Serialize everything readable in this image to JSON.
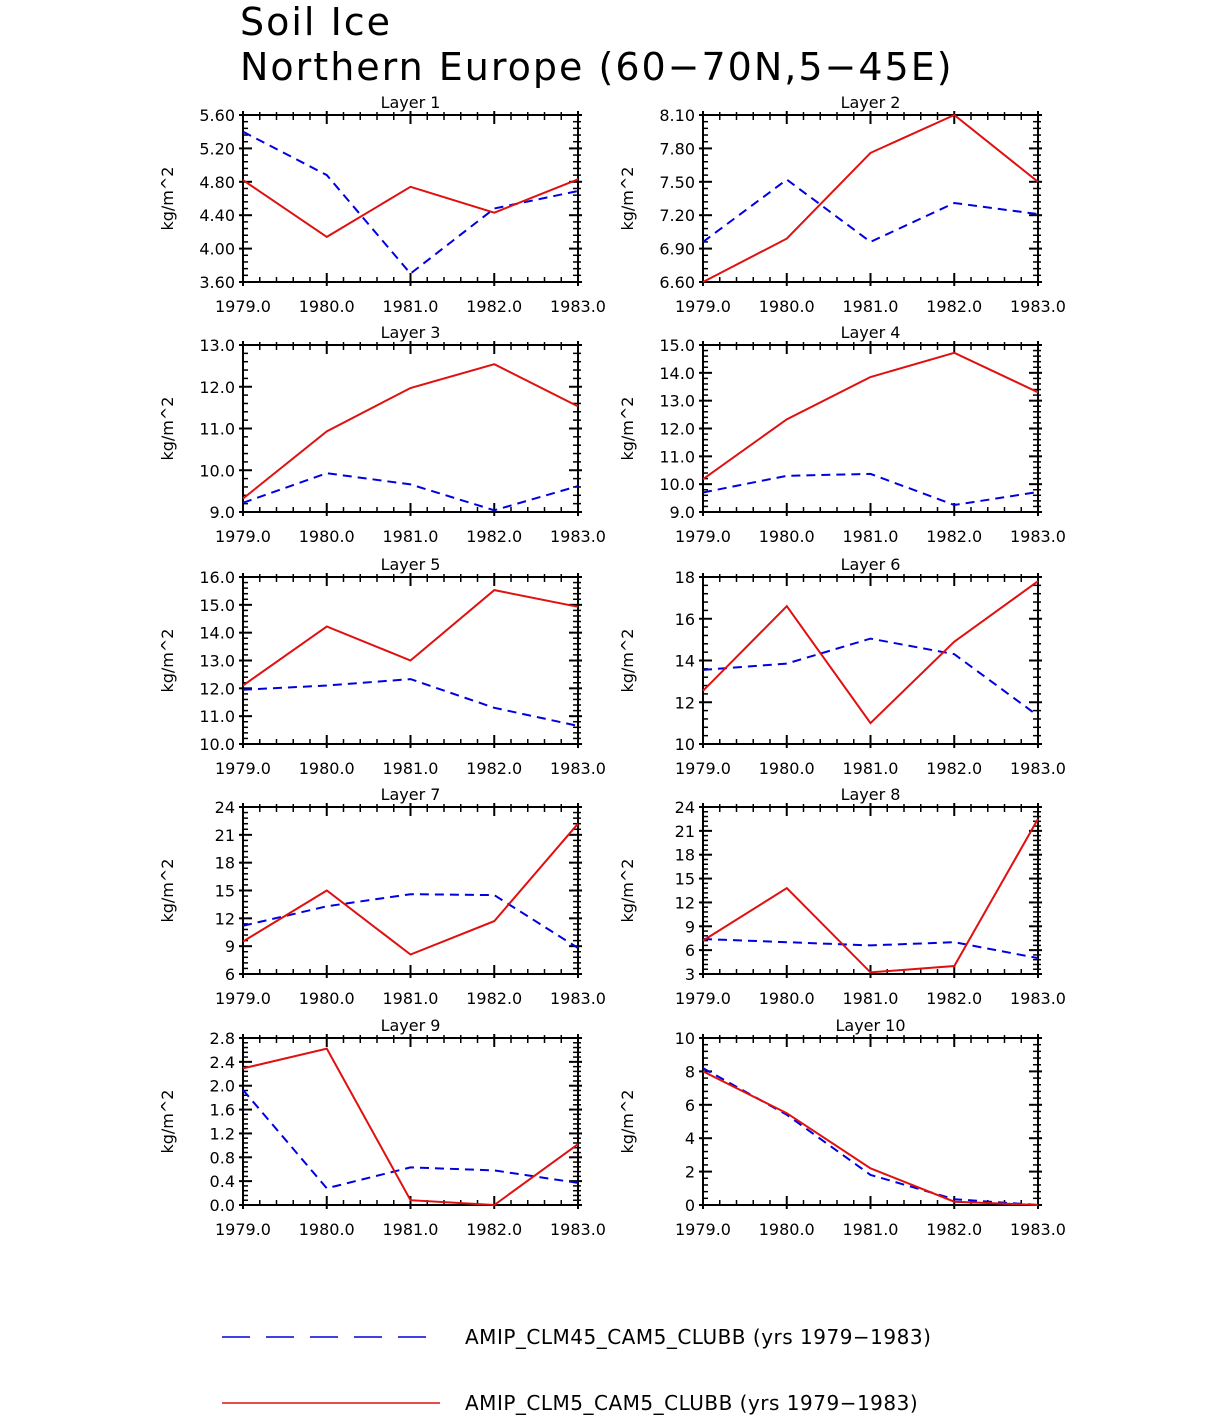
{
  "title": {
    "line1": "Soil Ice",
    "line2": "Northern Europe (60−70N,5−45E)"
  },
  "colors": {
    "clm45": "#0000e0",
    "clm5": "#e01010",
    "axis": "#000000"
  },
  "legend": [
    {
      "series": "clm45",
      "label": "AMIP_CLM45_CAM5_CLUBB (yrs 1979−1983)"
    },
    {
      "series": "clm5",
      "label": "AMIP_CLM5_CAM5_CLUBB (yrs 1979−1983)"
    }
  ],
  "chart_data": [
    {
      "type": "line",
      "title": "Layer 1",
      "xlabel": "",
      "ylabel": "kg/m^2",
      "x": [
        1979,
        1980,
        1981,
        1982,
        1983
      ],
      "xlim": [
        1979,
        1983
      ],
      "ylim": [
        3.6,
        5.6
      ],
      "yticks": [
        "3.60",
        "4.00",
        "4.40",
        "4.80",
        "5.20",
        "5.60"
      ],
      "series": [
        {
          "name": "AMIP_CLM45_CAM5_CLUBB",
          "key": "clm45",
          "values": [
            5.4,
            4.88,
            3.7,
            4.48,
            4.69
          ]
        },
        {
          "name": "AMIP_CLM5_CAM5_CLUBB",
          "key": "clm5",
          "values": [
            4.82,
            4.14,
            4.74,
            4.43,
            4.83
          ]
        }
      ]
    },
    {
      "type": "line",
      "title": "Layer 2",
      "xlabel": "",
      "ylabel": "kg/m^2",
      "x": [
        1979,
        1980,
        1981,
        1982,
        1983
      ],
      "xlim": [
        1979,
        1983
      ],
      "ylim": [
        6.6,
        8.1
      ],
      "yticks": [
        "6.60",
        "6.90",
        "7.20",
        "7.50",
        "7.80",
        "8.10"
      ],
      "series": [
        {
          "name": "AMIP_CLM45_CAM5_CLUBB",
          "key": "clm45",
          "values": [
            6.96,
            7.52,
            6.96,
            7.31,
            7.21
          ]
        },
        {
          "name": "AMIP_CLM5_CAM5_CLUBB",
          "key": "clm5",
          "values": [
            6.6,
            6.99,
            7.76,
            8.1,
            7.5
          ]
        }
      ]
    },
    {
      "type": "line",
      "title": "Layer 3",
      "xlabel": "",
      "ylabel": "kg/m^2",
      "x": [
        1979,
        1980,
        1981,
        1982,
        1983
      ],
      "xlim": [
        1979,
        1983
      ],
      "ylim": [
        9.0,
        13.0
      ],
      "yticks": [
        "9.0",
        "10.0",
        "11.0",
        "12.0",
        "13.0"
      ],
      "series": [
        {
          "name": "AMIP_CLM45_CAM5_CLUBB",
          "key": "clm45",
          "values": [
            9.22,
            9.93,
            9.66,
            9.04,
            9.62
          ]
        },
        {
          "name": "AMIP_CLM5_CAM5_CLUBB",
          "key": "clm5",
          "values": [
            9.32,
            10.93,
            11.97,
            12.54,
            11.53
          ]
        }
      ]
    },
    {
      "type": "line",
      "title": "Layer 4",
      "xlabel": "",
      "ylabel": "kg/m^2",
      "x": [
        1979,
        1980,
        1981,
        1982,
        1983
      ],
      "xlim": [
        1979,
        1983
      ],
      "ylim": [
        9.0,
        15.0
      ],
      "yticks": [
        "9.0",
        "10.0",
        "11.0",
        "12.0",
        "13.0",
        "14.0",
        "15.0"
      ],
      "series": [
        {
          "name": "AMIP_CLM45_CAM5_CLUBB",
          "key": "clm45",
          "values": [
            9.7,
            10.3,
            10.37,
            9.25,
            9.72
          ]
        },
        {
          "name": "AMIP_CLM5_CAM5_CLUBB",
          "key": "clm5",
          "values": [
            10.18,
            12.33,
            13.85,
            14.72,
            13.3
          ]
        }
      ]
    },
    {
      "type": "line",
      "title": "Layer 5",
      "xlabel": "",
      "ylabel": "kg/m^2",
      "x": [
        1979,
        1980,
        1981,
        1982,
        1983
      ],
      "xlim": [
        1979,
        1983
      ],
      "ylim": [
        10.0,
        16.0
      ],
      "yticks": [
        "10.0",
        "11.0",
        "12.0",
        "13.0",
        "14.0",
        "15.0",
        "16.0"
      ],
      "series": [
        {
          "name": "AMIP_CLM45_CAM5_CLUBB",
          "key": "clm45",
          "values": [
            11.95,
            12.1,
            12.33,
            11.3,
            10.65
          ]
        },
        {
          "name": "AMIP_CLM5_CAM5_CLUBB",
          "key": "clm5",
          "values": [
            12.1,
            14.22,
            13.0,
            15.53,
            14.93
          ]
        }
      ]
    },
    {
      "type": "line",
      "title": "Layer 6",
      "xlabel": "",
      "ylabel": "kg/m^2",
      "x": [
        1979,
        1980,
        1981,
        1982,
        1983
      ],
      "xlim": [
        1979,
        1983
      ],
      "ylim": [
        10,
        18
      ],
      "yticks": [
        "10",
        "12",
        "14",
        "16",
        "18"
      ],
      "series": [
        {
          "name": "AMIP_CLM45_CAM5_CLUBB",
          "key": "clm45",
          "values": [
            13.55,
            13.85,
            15.05,
            14.3,
            11.35
          ]
        },
        {
          "name": "AMIP_CLM5_CAM5_CLUBB",
          "key": "clm5",
          "values": [
            12.55,
            16.6,
            11.0,
            14.9,
            17.8
          ]
        }
      ]
    },
    {
      "type": "line",
      "title": "Layer 7",
      "xlabel": "",
      "ylabel": "kg/m^2",
      "x": [
        1979,
        1980,
        1981,
        1982,
        1983
      ],
      "xlim": [
        1979,
        1983
      ],
      "ylim": [
        6,
        24
      ],
      "yticks": [
        "6",
        "9",
        "12",
        "15",
        "18",
        "21",
        "24"
      ],
      "series": [
        {
          "name": "AMIP_CLM45_CAM5_CLUBB",
          "key": "clm45",
          "values": [
            11.2,
            13.3,
            14.6,
            14.5,
            8.8
          ]
        },
        {
          "name": "AMIP_CLM5_CAM5_CLUBB",
          "key": "clm5",
          "values": [
            9.5,
            15.0,
            8.1,
            11.7,
            22.2
          ]
        }
      ]
    },
    {
      "type": "line",
      "title": "Layer 8",
      "xlabel": "",
      "ylabel": "kg/m^2",
      "x": [
        1979,
        1980,
        1981,
        1982,
        1983
      ],
      "xlim": [
        1979,
        1983
      ],
      "ylim": [
        3,
        24
      ],
      "yticks": [
        "3",
        "6",
        "9",
        "12",
        "15",
        "18",
        "21",
        "24"
      ],
      "series": [
        {
          "name": "AMIP_CLM45_CAM5_CLUBB",
          "key": "clm45",
          "values": [
            7.4,
            7.0,
            6.6,
            7.0,
            5.0
          ]
        },
        {
          "name": "AMIP_CLM5_CAM5_CLUBB",
          "key": "clm5",
          "values": [
            7.2,
            13.8,
            3.2,
            4.0,
            22.5
          ]
        }
      ]
    },
    {
      "type": "line",
      "title": "Layer 9",
      "xlabel": "",
      "ylabel": "kg/m^2",
      "x": [
        1979,
        1980,
        1981,
        1982,
        1983
      ],
      "xlim": [
        1979,
        1983
      ],
      "ylim": [
        0.0,
        2.8
      ],
      "yticks": [
        "0.0",
        "0.4",
        "0.8",
        "1.2",
        "1.6",
        "2.0",
        "2.4",
        "2.8"
      ],
      "series": [
        {
          "name": "AMIP_CLM45_CAM5_CLUBB",
          "key": "clm45",
          "values": [
            1.93,
            0.28,
            0.63,
            0.58,
            0.37
          ]
        },
        {
          "name": "AMIP_CLM5_CAM5_CLUBB",
          "key": "clm5",
          "values": [
            2.29,
            2.62,
            0.08,
            0.0,
            1.02
          ]
        }
      ]
    },
    {
      "type": "line",
      "title": "Layer 10",
      "xlabel": "",
      "ylabel": "kg/m^2",
      "x": [
        1979,
        1980,
        1981,
        1982,
        1983
      ],
      "xlim": [
        1979,
        1983
      ],
      "ylim": [
        0,
        10
      ],
      "yticks": [
        "0",
        "2",
        "4",
        "6",
        "8",
        "10"
      ],
      "series": [
        {
          "name": "AMIP_CLM45_CAM5_CLUBB",
          "key": "clm45",
          "values": [
            8.2,
            5.4,
            1.8,
            0.35,
            0.0
          ]
        },
        {
          "name": "AMIP_CLM5_CAM5_CLUBB",
          "key": "clm5",
          "values": [
            8.0,
            5.5,
            2.2,
            0.2,
            0.0
          ]
        }
      ]
    }
  ],
  "xticks": [
    "1979.0",
    "1980.0",
    "1981.0",
    "1982.0",
    "1983.0"
  ]
}
